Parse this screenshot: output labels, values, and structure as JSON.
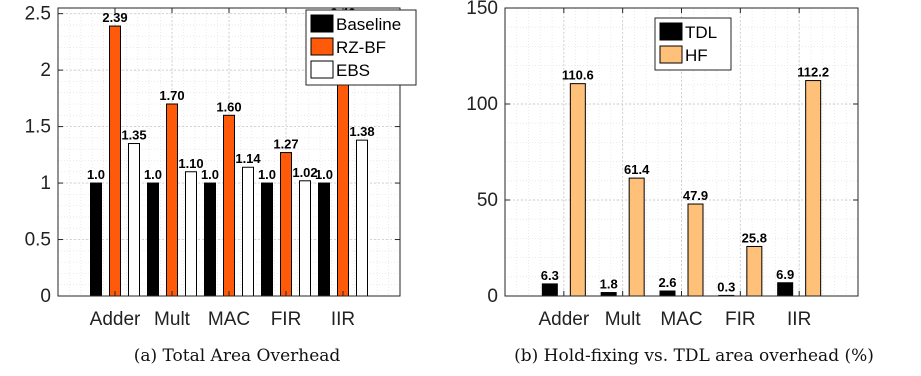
{
  "chart_data": [
    {
      "type": "bar",
      "caption": "(a) Total Area Overhead",
      "categories": [
        "Adder",
        "Mult",
        "MAC",
        "FIR",
        "IIR"
      ],
      "series": [
        {
          "name": "Baseline",
          "color": "#000000",
          "values": [
            1.0,
            1.0,
            1.0,
            1.0,
            1.0
          ],
          "labels": [
            "1.0",
            "1.0",
            "1.0",
            "1.0",
            "1.0"
          ]
        },
        {
          "name": "RZ-BF",
          "color": "#ff5a0a",
          "values": [
            2.39,
            1.7,
            1.6,
            1.27,
            2.43
          ],
          "labels": [
            "2.39",
            "1.70",
            "1.60",
            "1.27",
            "2.43"
          ]
        },
        {
          "name": "EBS",
          "color": "#ffffff",
          "values": [
            1.35,
            1.1,
            1.14,
            1.02,
            1.38
          ],
          "labels": [
            "1.35",
            "1.10",
            "1.14",
            "1.02",
            "1.38"
          ]
        }
      ],
      "ylim": [
        0,
        2.55
      ],
      "yticks": [
        "0",
        "0.5",
        "1",
        "1.5",
        "2",
        "2.5"
      ],
      "ytick_values": [
        0,
        0.5,
        1,
        1.5,
        2,
        2.5
      ],
      "grid": true,
      "legend_position": "top-right"
    },
    {
      "type": "bar",
      "caption": "(b) Hold-fixing vs. TDL area overhead (%)",
      "categories": [
        "Adder",
        "Mult",
        "MAC",
        "FIR",
        "IIR"
      ],
      "series": [
        {
          "name": "TDL",
          "color": "#000000",
          "values": [
            6.3,
            1.8,
            2.6,
            0.3,
            6.9
          ],
          "labels": [
            "6.3",
            "1.8",
            "2.6",
            "0.3",
            "6.9"
          ]
        },
        {
          "name": "HF",
          "color": "#ffc07a",
          "values": [
            110.6,
            61.4,
            47.9,
            25.8,
            112.2
          ],
          "labels": [
            "110.6",
            "61.4",
            "47.9",
            "25.8",
            "112.2"
          ]
        }
      ],
      "ylim": [
        0,
        150
      ],
      "yticks": [
        "0",
        "50",
        "100",
        "150"
      ],
      "ytick_values": [
        0,
        50,
        100,
        150
      ],
      "grid": true,
      "legend_position": "top-left"
    }
  ]
}
